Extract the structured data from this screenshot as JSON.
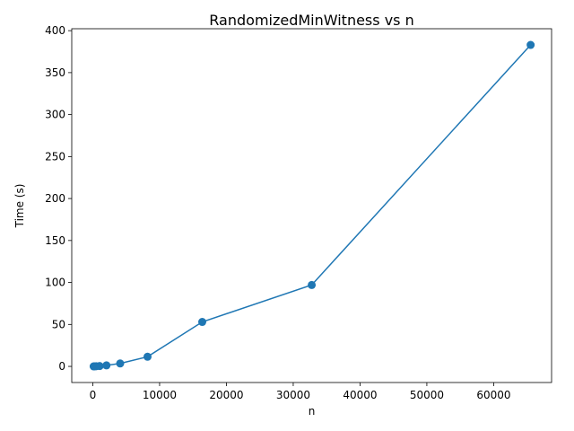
{
  "chart_data": {
    "type": "line",
    "title": "RandomizedMinWitness vs n",
    "xlabel": "n",
    "ylabel": "Time (s)",
    "xlim": [
      -3150,
      68670
    ],
    "ylim": [
      -19.2,
      402.3
    ],
    "grid": false,
    "legend": "none",
    "color": "#1f77b4",
    "xticks": [
      0,
      10000,
      20000,
      30000,
      40000,
      50000,
      60000
    ],
    "yticks": [
      0,
      50,
      100,
      150,
      200,
      250,
      300,
      350,
      400
    ],
    "series": [
      {
        "x": [
          128,
          256,
          512,
          1024,
          2048,
          4096,
          8192,
          16384,
          32768,
          65536
        ],
        "y": [
          0.05,
          0.1,
          0.2,
          0.4,
          1.2,
          3.5,
          11.5,
          53.0,
          97.0,
          383.0
        ]
      }
    ]
  }
}
